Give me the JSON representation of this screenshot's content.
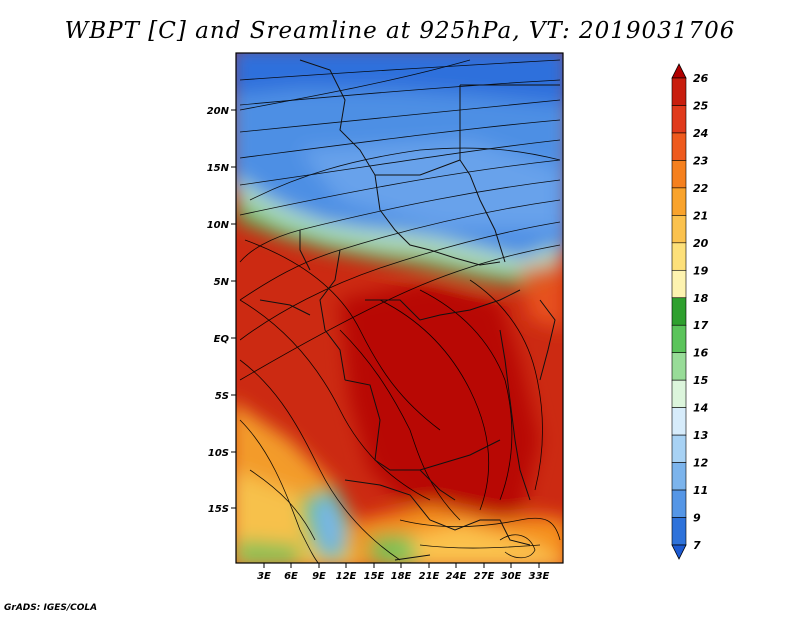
{
  "title": "WBPT [C] and Sreamline at 925hPa, VT: 2019031706",
  "credit": "GrADS: IGES/COLA",
  "map": {
    "lat_ticks": [
      "20N",
      "15N",
      "10N",
      "5N",
      "EQ",
      "5S",
      "10S",
      "15S"
    ],
    "lon_ticks": [
      "3E",
      "6E",
      "9E",
      "12E",
      "15E",
      "18E",
      "21E",
      "24E",
      "27E",
      "30E",
      "33E"
    ]
  },
  "colorbar": {
    "labels": [
      "26",
      "25",
      "24",
      "23",
      "22",
      "21",
      "20",
      "19",
      "18",
      "17",
      "16",
      "15",
      "14",
      "13",
      "12",
      "11",
      "9",
      "7"
    ],
    "colors": [
      "#b00000",
      "#c81e0e",
      "#e03a1c",
      "#ee5a1e",
      "#f5801e",
      "#f9a32c",
      "#fbc24e",
      "#fde07a",
      "#fdf3b0",
      "#2fa02f",
      "#5bc45b",
      "#98dc98",
      "#dcf5dc",
      "#d7ecfb",
      "#a8d2f4",
      "#7cb4ec",
      "#5596e6",
      "#2e72da",
      "#1c5ad2"
    ]
  }
}
